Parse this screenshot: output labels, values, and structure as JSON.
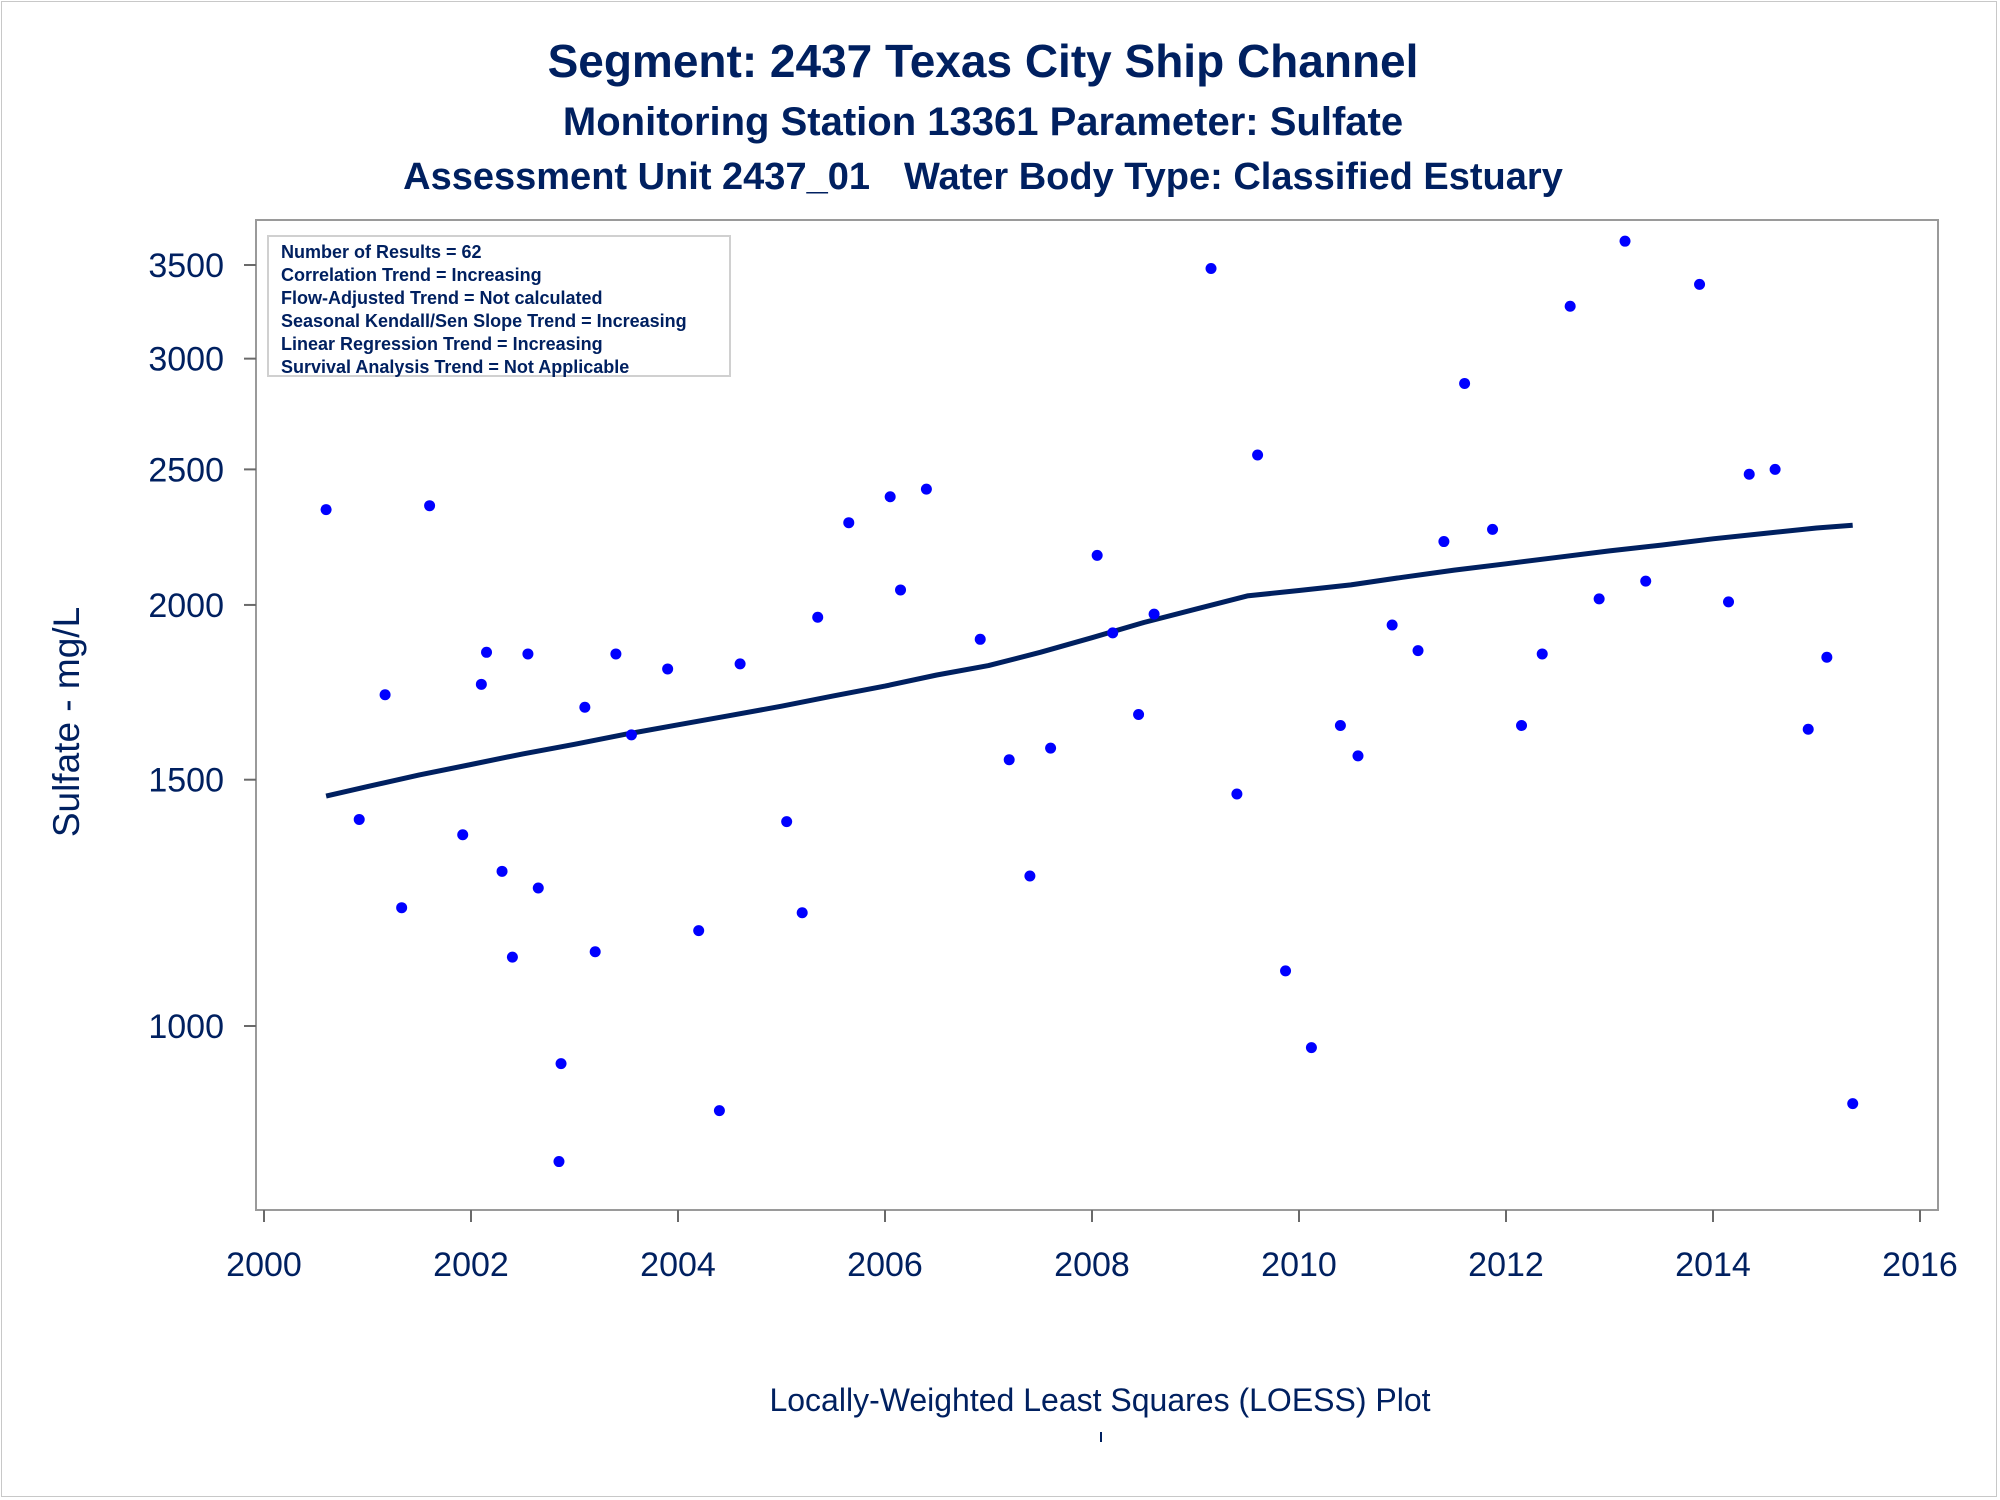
{
  "titles": {
    "line1": "Segment: 2437  Texas City Ship Channel",
    "line2": "Monitoring Station 13361 Parameter: Sulfate",
    "line3a": "Assessment Unit 2437_01",
    "line3b": "Water Body Type: Classified Estuary"
  },
  "stats_box": [
    "Number of Results = 62",
    "Correlation Trend = Increasing",
    "Flow-Adjusted Trend = Not calculated",
    "Seasonal Kendall/Sen Slope Trend = Increasing",
    "Linear Regression Trend = Increasing",
    "Survival Analysis Trend = Not Applicable"
  ],
  "footer": "Locally-Weighted Least Squares (LOESS) Plot",
  "colors": {
    "text": "#002060",
    "points": "#0000ff",
    "line": "#002060"
  },
  "chart_data": {
    "type": "scatter",
    "xlabel": "",
    "ylabel": "Sulfate - mg/L",
    "xlim": [
      2000,
      2016
    ],
    "ylim": [
      800,
      3700
    ],
    "yscale": "log",
    "xticks": [
      2000,
      2002,
      2004,
      2006,
      2008,
      2010,
      2012,
      2014,
      2016
    ],
    "yticks": [
      1000,
      1500,
      2000,
      2500,
      3000,
      3500
    ],
    "grid": false,
    "points": [
      [
        2000.6,
        2340
      ],
      [
        2000.92,
        1405
      ],
      [
        2001.17,
        1725
      ],
      [
        2001.33,
        1215
      ],
      [
        2001.6,
        2355
      ],
      [
        2001.92,
        1370
      ],
      [
        2002.1,
        1755
      ],
      [
        2002.15,
        1850
      ],
      [
        2002.3,
        1290
      ],
      [
        2002.4,
        1120
      ],
      [
        2002.55,
        1845
      ],
      [
        2002.65,
        1255
      ],
      [
        2002.87,
        940
      ],
      [
        2002.85,
        800
      ],
      [
        2003.1,
        1690
      ],
      [
        2003.2,
        1130
      ],
      [
        2003.4,
        1845
      ],
      [
        2003.55,
        1615
      ],
      [
        2003.9,
        1800
      ],
      [
        2004.2,
        1170
      ],
      [
        2004.4,
        870
      ],
      [
        2004.6,
        1815
      ],
      [
        2005.05,
        1400
      ],
      [
        2005.2,
        1205
      ],
      [
        2005.35,
        1960
      ],
      [
        2005.65,
        2290
      ],
      [
        2006.05,
        2390
      ],
      [
        2006.15,
        2050
      ],
      [
        2006.4,
        2420
      ],
      [
        2006.92,
        1890
      ],
      [
        2007.2,
        1550
      ],
      [
        2007.4,
        1280
      ],
      [
        2007.6,
        1580
      ],
      [
        2008.05,
        2170
      ],
      [
        2008.2,
        1910
      ],
      [
        2008.45,
        1670
      ],
      [
        2008.6,
        1970
      ],
      [
        2009.15,
        3480
      ],
      [
        2009.4,
        1465
      ],
      [
        2009.6,
        2560
      ],
      [
        2009.87,
        1095
      ],
      [
        2010.12,
        965
      ],
      [
        2010.4,
        1640
      ],
      [
        2010.57,
        1560
      ],
      [
        2010.9,
        1935
      ],
      [
        2011.15,
        1855
      ],
      [
        2011.4,
        2220
      ],
      [
        2011.6,
        2880
      ],
      [
        2011.87,
        2265
      ],
      [
        2012.15,
        1640
      ],
      [
        2012.35,
        1845
      ],
      [
        2012.62,
        3270
      ],
      [
        2012.9,
        2020
      ],
      [
        2013.15,
        3640
      ],
      [
        2013.35,
        2080
      ],
      [
        2013.87,
        3390
      ],
      [
        2014.15,
        2010
      ],
      [
        2014.35,
        2480
      ],
      [
        2014.6,
        2500
      ],
      [
        2014.92,
        1630
      ],
      [
        2015.1,
        1835
      ],
      [
        2015.35,
        880
      ]
    ],
    "loess": [
      [
        2000.6,
        1460
      ],
      [
        2001.0,
        1483
      ],
      [
        2001.5,
        1512
      ],
      [
        2002.0,
        1538
      ],
      [
        2002.5,
        1565
      ],
      [
        2003.0,
        1590
      ],
      [
        2003.5,
        1617
      ],
      [
        2004.0,
        1642
      ],
      [
        2004.5,
        1667
      ],
      [
        2005.0,
        1693
      ],
      [
        2005.5,
        1722
      ],
      [
        2006.0,
        1750
      ],
      [
        2006.5,
        1782
      ],
      [
        2007.0,
        1810
      ],
      [
        2007.5,
        1850
      ],
      [
        2008.0,
        1895
      ],
      [
        2008.5,
        1943
      ],
      [
        2009.0,
        1986
      ],
      [
        2009.5,
        2030
      ],
      [
        2010.0,
        2048
      ],
      [
        2010.5,
        2067
      ],
      [
        2011.0,
        2093
      ],
      [
        2011.5,
        2118
      ],
      [
        2012.0,
        2140
      ],
      [
        2012.5,
        2163
      ],
      [
        2013.0,
        2186
      ],
      [
        2013.5,
        2207
      ],
      [
        2014.0,
        2230
      ],
      [
        2014.5,
        2250
      ],
      [
        2015.0,
        2270
      ],
      [
        2015.35,
        2280
      ]
    ]
  }
}
